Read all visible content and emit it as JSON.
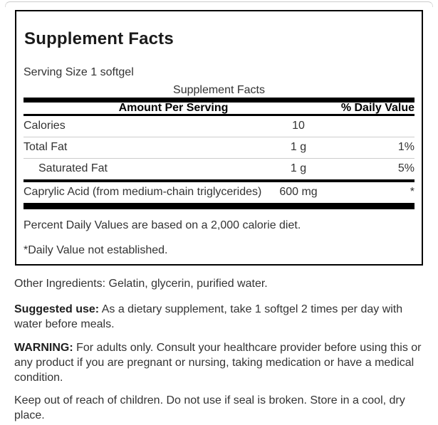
{
  "label_box": {
    "title": "Supplement Facts",
    "serving_size": "Serving Size 1 softgel",
    "table": {
      "caption": "Supplement Facts",
      "header": {
        "amount_col": "Amount Per Serving",
        "dv_col": "% Daily Value"
      },
      "rows": [
        {
          "name": "Calories",
          "amount": "10",
          "dv": ""
        },
        {
          "name": "Total Fat",
          "amount": "1 g",
          "dv": "1%"
        },
        {
          "name": "Saturated Fat",
          "amount": "1 g",
          "dv": "5%",
          "indented": true
        },
        {
          "name": "Caprylic Acid (from medium-chain triglycerides)",
          "amount": "600 mg",
          "dv": "*"
        }
      ]
    },
    "footnotes": [
      "Percent Daily Values are based on a 2,000 calorie diet.",
      "*Daily Value not established."
    ]
  },
  "info": {
    "other_ingredients": "Other Ingredients: Gelatin, glycerin, purified water.",
    "suggested_use": {
      "lead": "Suggested use:",
      "text": " As a dietary supplement, take 1 softgel 2 times per day with water before meals."
    },
    "warning": {
      "lead": "WARNING:",
      "text": " For adults only. Consult your healthcare provider before using this or any product if you are pregnant or nursing, taking medication or have a medical condition."
    },
    "storage": "Keep out of reach of children. Do not use if seal is broken. Store in a cool, dry place."
  },
  "colors": {
    "heavy_rule": "#000000",
    "thin_rule": "#cccccc",
    "text": "#333333",
    "panel_border": "#000000",
    "background": "#ffffff"
  }
}
